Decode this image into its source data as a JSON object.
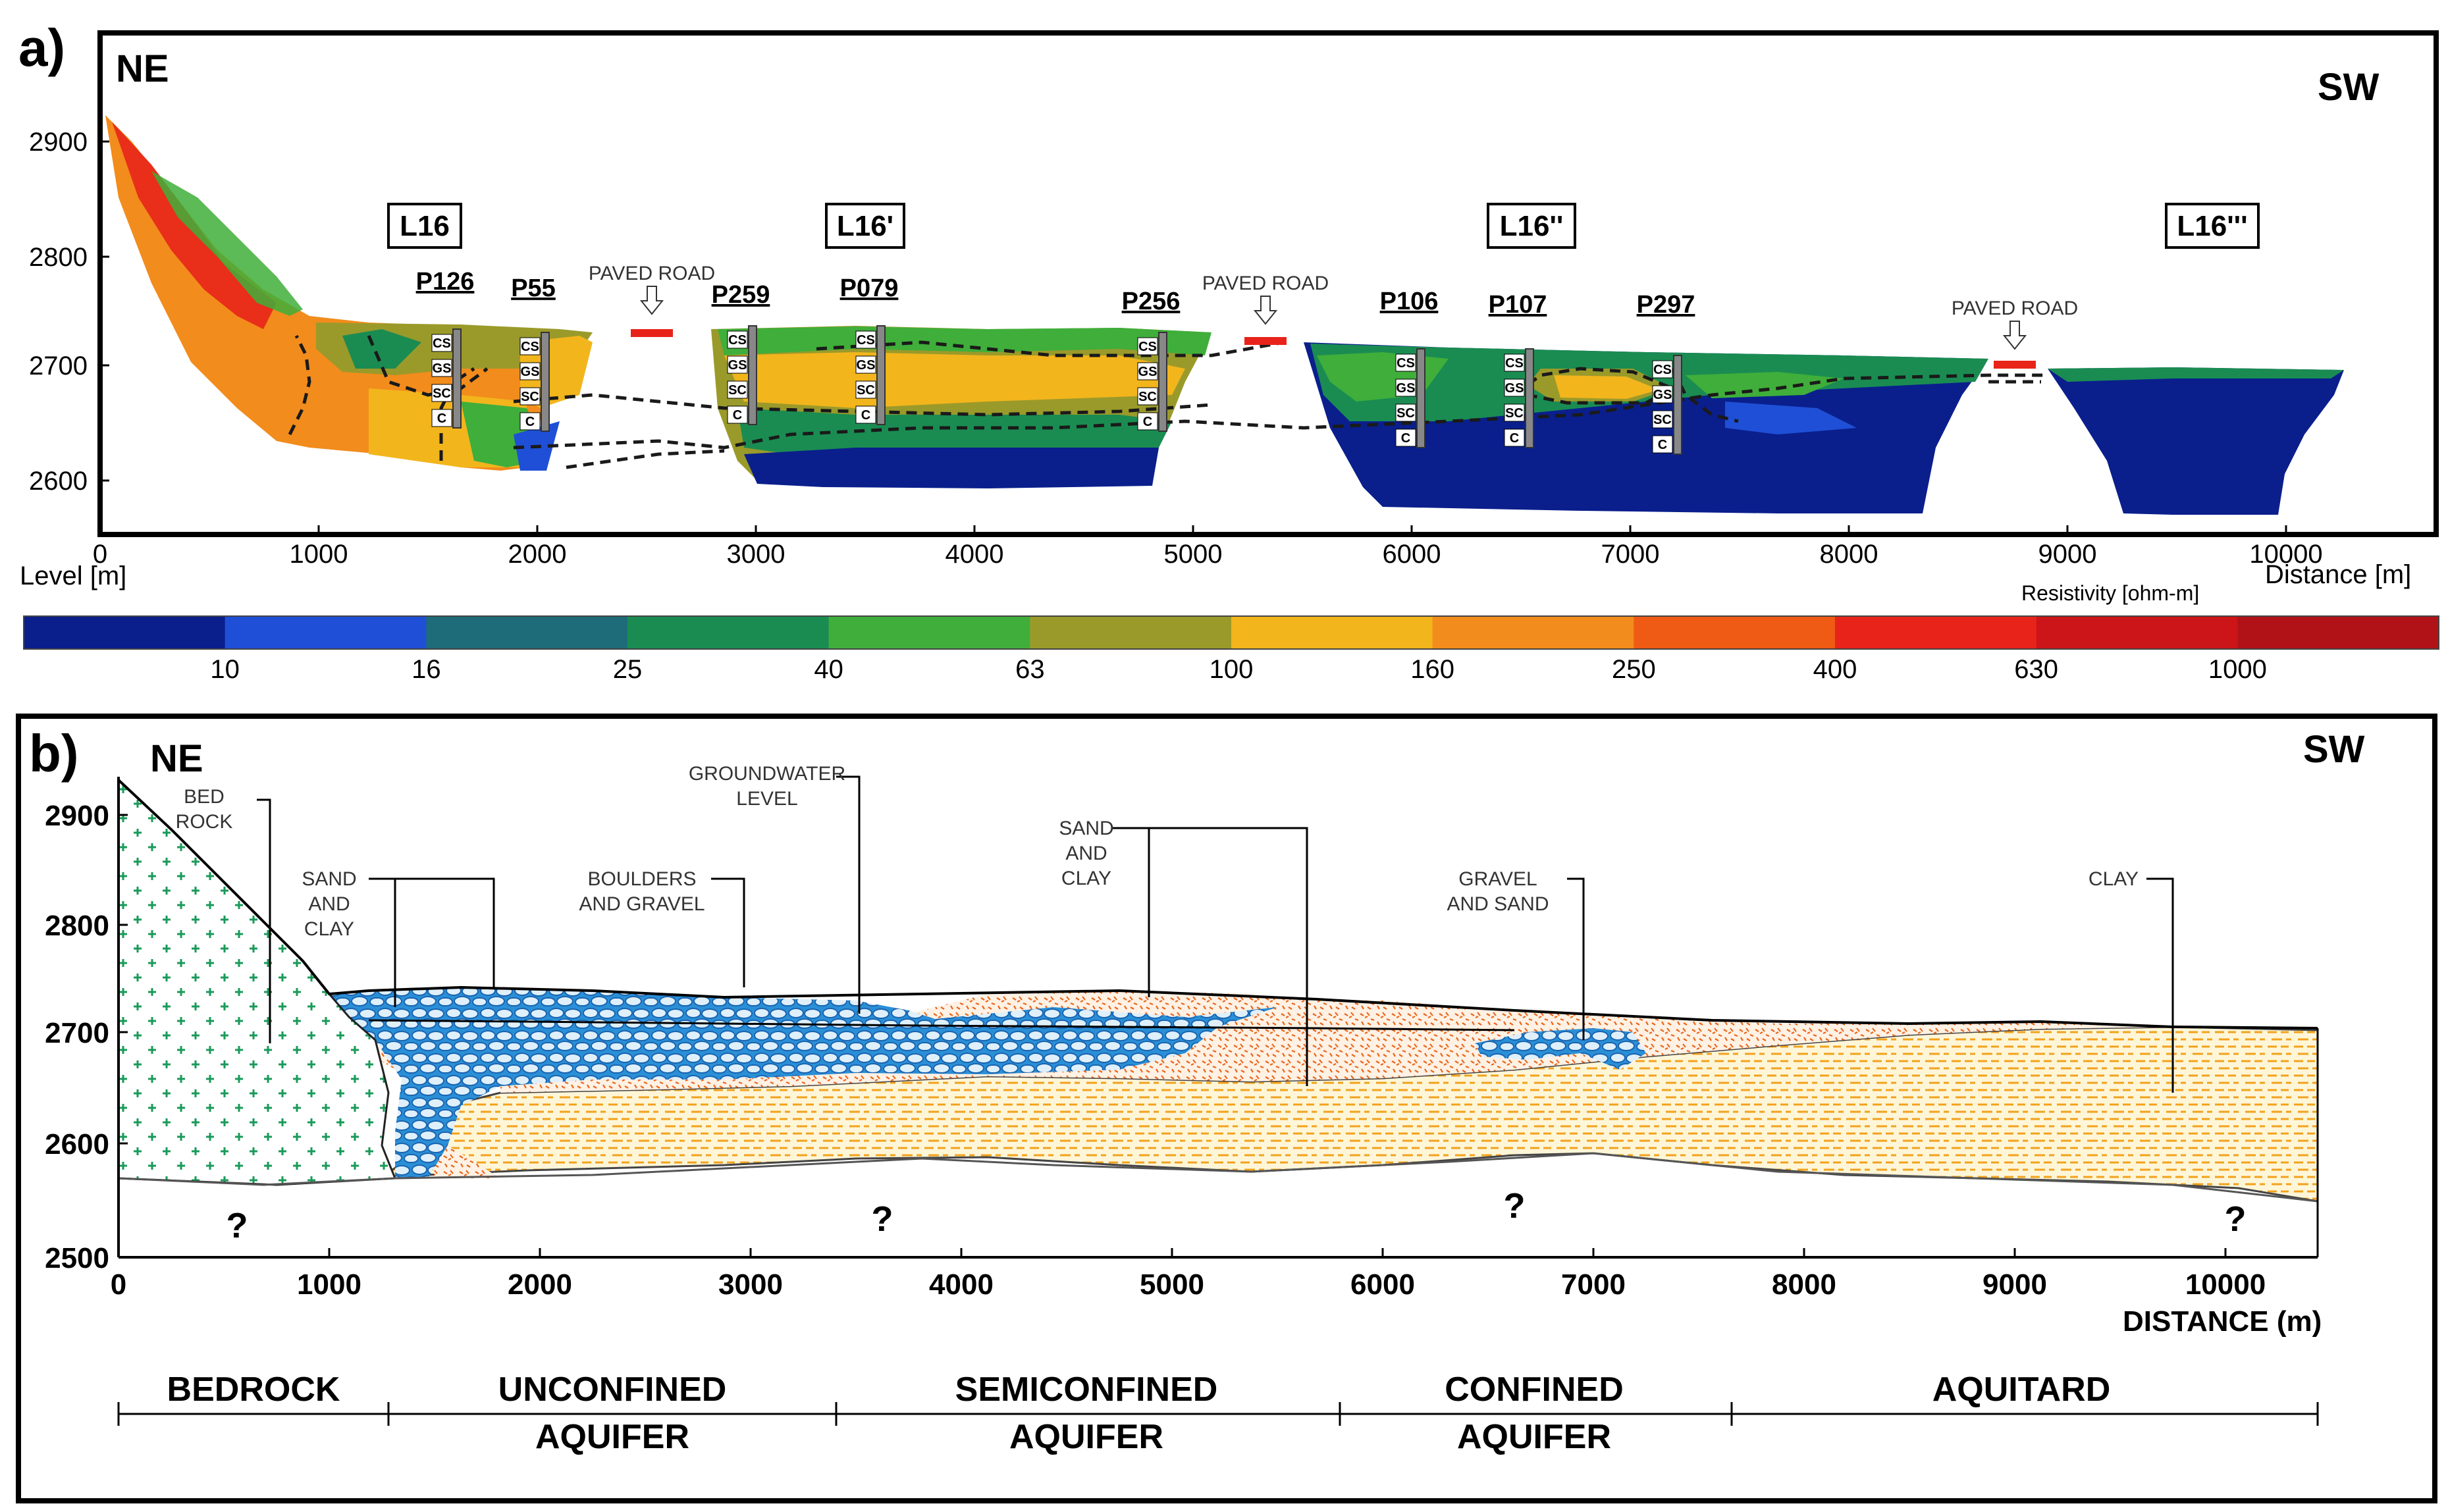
{
  "panel_a": {
    "letter": "a)",
    "left_direction": "NE",
    "right_direction": "SW",
    "y_ticks": [
      "2900",
      "2800",
      "2700",
      "2600"
    ],
    "x_ticks": [
      "0",
      "1000",
      "2000",
      "3000",
      "4000",
      "5000",
      "6000",
      "7000",
      "8000",
      "9000",
      "10000"
    ],
    "level_label": "Level [m]",
    "distance_label": "Distance [m]",
    "resistivity_label": "Resistivity [ohm-m]",
    "line_labels": [
      "L16",
      "L16'",
      "L16''",
      "L16'''"
    ],
    "paved_road": "PAVED ROAD",
    "wells": [
      "P126",
      "P55",
      "P259",
      "P079",
      "P256",
      "P106",
      "P107",
      "P297"
    ],
    "soil_codes": [
      "CS",
      "GS",
      "SC",
      "C"
    ]
  },
  "colorbar": {
    "ticks": [
      "10",
      "16",
      "25",
      "40",
      "63",
      "100",
      "160",
      "250",
      "400",
      "630",
      "1000"
    ],
    "colors": [
      "#0a1f8c",
      "#1f4fd6",
      "#1e6b7a",
      "#1a8c52",
      "#3fae3a",
      "#9a9a2a",
      "#f2b51c",
      "#f28c1c",
      "#ef5a14",
      "#e8231a",
      "#cc1518",
      "#b01218"
    ]
  },
  "panel_b": {
    "letter": "b)",
    "left_direction": "NE",
    "right_direction": "SW",
    "y_ticks": [
      "2900",
      "2800",
      "2700",
      "2600",
      "2500"
    ],
    "x_ticks": [
      "0",
      "1000",
      "2000",
      "3000",
      "4000",
      "5000",
      "6000",
      "7000",
      "8000",
      "9000",
      "10000"
    ],
    "distance_label": "DISTANCE (m)",
    "unknown_marker": "?",
    "annotations": {
      "bedrock": [
        "BED",
        "ROCK"
      ],
      "sand_clay_1": [
        "SAND",
        "AND",
        "CLAY"
      ],
      "boulders": [
        "BOULDERS",
        "AND GRAVEL"
      ],
      "groundwater": [
        "GROUNDWATER",
        "LEVEL"
      ],
      "sand_clay_2": [
        "SAND",
        "AND",
        "CLAY"
      ],
      "gravel_sand": [
        "GRAVEL",
        "AND SAND"
      ],
      "clay": [
        "CLAY"
      ]
    }
  },
  "zones": [
    {
      "line1": "BEDROCK",
      "line2": ""
    },
    {
      "line1": "UNCONFINED",
      "line2": "AQUIFER"
    },
    {
      "line1": "SEMICONFINED",
      "line2": "AQUIFER"
    },
    {
      "line1": "CONFINED",
      "line2": "AQUIFER"
    },
    {
      "line1": "AQUITARD",
      "line2": ""
    }
  ]
}
